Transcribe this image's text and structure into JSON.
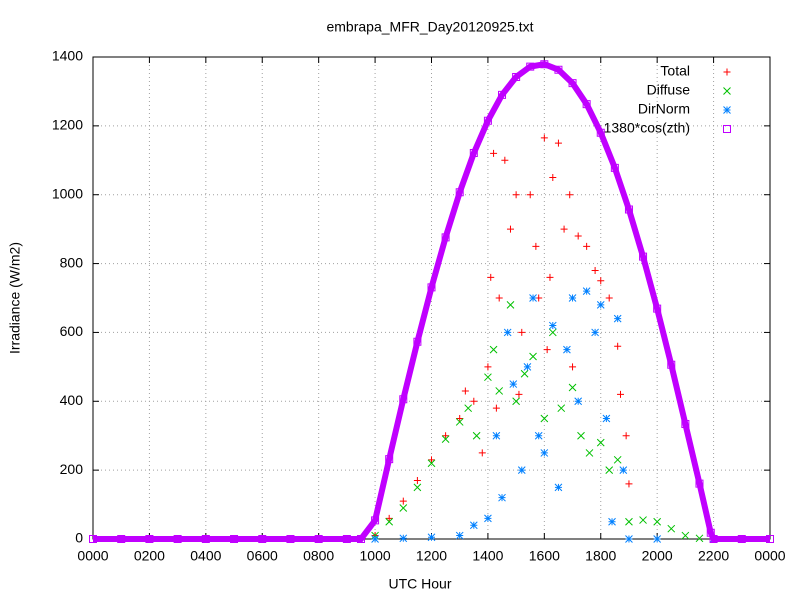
{
  "chart_data": {
    "type": "scatter",
    "title": "embrapa_MFR_Day20120925.txt",
    "x_label": "UTC Hour",
    "y_label": "Irradiance (W/m2)",
    "xlim": [
      0,
      24
    ],
    "ylim": [
      0,
      1400
    ],
    "xticks": [
      {
        "value": 0,
        "label": "0000"
      },
      {
        "value": 2,
        "label": "0200"
      },
      {
        "value": 4,
        "label": "0400"
      },
      {
        "value": 6,
        "label": "0600"
      },
      {
        "value": 8,
        "label": "0800"
      },
      {
        "value": 10,
        "label": "1000"
      },
      {
        "value": 12,
        "label": "1200"
      },
      {
        "value": 14,
        "label": "1400"
      },
      {
        "value": 16,
        "label": "1600"
      },
      {
        "value": 18,
        "label": "1800"
      },
      {
        "value": 20,
        "label": "2000"
      },
      {
        "value": 22,
        "label": "2200"
      },
      {
        "value": 24,
        "label": "0000"
      }
    ],
    "yticks": [
      0,
      200,
      400,
      600,
      800,
      1000,
      1200,
      1400
    ],
    "grid": true,
    "legend": "top-right",
    "series": [
      {
        "name": "Total",
        "color": "#ff0000",
        "marker": "plus",
        "x": [
          10,
          10.5,
          11,
          11.5,
          12,
          12.5,
          13,
          13.2,
          13.5,
          13.8,
          14,
          14.1,
          14.2,
          14.4,
          14.6,
          14.8,
          15,
          15.2,
          15.5,
          15.7,
          16,
          16.1,
          16.3,
          16.5,
          16.7,
          16.9,
          17.2,
          17.5,
          17.8,
          18,
          18.3,
          18.6,
          18.7,
          18.9,
          19,
          15.1,
          14.3,
          15.8,
          17,
          16.2
        ],
        "values": [
          10,
          60,
          110,
          170,
          230,
          300,
          350,
          430,
          400,
          250,
          500,
          760,
          1120,
          700,
          1100,
          900,
          1000,
          600,
          1000,
          850,
          1165,
          550,
          1050,
          1150,
          900,
          1000,
          880,
          850,
          780,
          750,
          700,
          560,
          420,
          300,
          160,
          420,
          380,
          700,
          500,
          760
        ]
      },
      {
        "name": "Diffuse",
        "color": "#00c000",
        "marker": "cross",
        "x": [
          10,
          10.5,
          11,
          11.5,
          12,
          12.5,
          13,
          13.3,
          13.6,
          14,
          14.2,
          14.4,
          14.8,
          15,
          15.3,
          15.6,
          16,
          16.3,
          16.6,
          17,
          17.3,
          17.6,
          18,
          18.3,
          18.6,
          19,
          19.5,
          20,
          20.5,
          21,
          21.5
        ],
        "values": [
          10,
          50,
          90,
          150,
          220,
          290,
          340,
          380,
          300,
          470,
          550,
          430,
          680,
          400,
          480,
          530,
          350,
          600,
          380,
          440,
          300,
          250,
          280,
          200,
          230,
          50,
          55,
          50,
          30,
          10,
          2
        ]
      },
      {
        "name": "DirNorm",
        "color": "#0080ff",
        "marker": "star",
        "x": [
          10,
          11,
          12,
          13,
          13.5,
          14,
          14.3,
          14.5,
          14.7,
          14.9,
          15.2,
          15.4,
          15.6,
          15.8,
          16,
          16.3,
          16.5,
          16.8,
          17,
          17.2,
          17.5,
          17.8,
          18,
          18.2,
          18.4,
          18.6,
          18.8,
          19,
          20,
          22
        ],
        "values": [
          0,
          2,
          5,
          10,
          40,
          60,
          300,
          120,
          600,
          450,
          200,
          500,
          700,
          300,
          250,
          620,
          150,
          550,
          700,
          400,
          720,
          600,
          680,
          350,
          50,
          640,
          200,
          0,
          0,
          0
        ]
      },
      {
        "name": "1380*cos(zth)",
        "color": "#c000ff",
        "marker": "square",
        "x": [
          0,
          1,
          2,
          3,
          4,
          5,
          6,
          7,
          8,
          9,
          9.5,
          10,
          10.5,
          11,
          11.5,
          12,
          12.5,
          13,
          13.5,
          14,
          14.5,
          15,
          15.5,
          16,
          16.5,
          17,
          17.5,
          18,
          18.5,
          19,
          19.5,
          20,
          20.5,
          21,
          21.5,
          21.9,
          22,
          23,
          24
        ],
        "values": [
          0,
          0,
          0,
          0,
          0,
          0,
          0,
          0,
          0,
          0,
          0,
          54,
          232,
          406,
          573,
          731,
          876,
          1007,
          1121,
          1215,
          1290,
          1342,
          1372,
          1379,
          1363,
          1324,
          1263,
          1180,
          1078,
          957,
          820,
          669,
          506,
          334,
          161,
          18,
          0,
          0,
          0
        ]
      }
    ]
  }
}
